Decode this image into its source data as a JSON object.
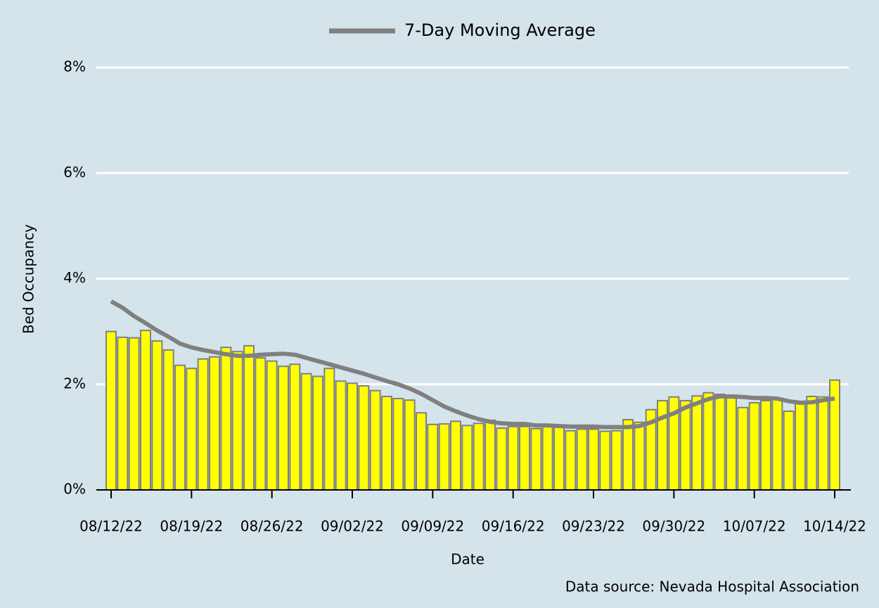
{
  "chart_data": {
    "type": "bar",
    "xlabel": "Date",
    "ylabel": "Bed Occupancy",
    "source": "Data source: Nevada Hospital Association",
    "categories": [
      "08/12/22",
      null,
      null,
      null,
      null,
      null,
      null,
      "08/19/22",
      null,
      null,
      null,
      null,
      null,
      null,
      "08/26/22",
      null,
      null,
      null,
      null,
      null,
      null,
      "09/02/22",
      null,
      null,
      null,
      null,
      null,
      null,
      "09/09/22",
      null,
      null,
      null,
      null,
      null,
      null,
      "09/16/22",
      null,
      null,
      null,
      null,
      null,
      null,
      "09/23/22",
      null,
      null,
      null,
      null,
      null,
      null,
      "09/30/22",
      null,
      null,
      null,
      null,
      null,
      null,
      "10/07/22",
      null,
      null,
      null,
      null,
      null,
      null,
      "10/14/22"
    ],
    "series": [
      {
        "type": "bar",
        "color": "#ffff00",
        "values": [
          3.0,
          2.89,
          2.88,
          3.02,
          2.82,
          2.65,
          2.36,
          2.3,
          2.48,
          2.52,
          2.7,
          2.62,
          2.73,
          2.5,
          2.44,
          2.34,
          2.38,
          2.2,
          2.15,
          2.3,
          2.06,
          2.02,
          1.97,
          1.88,
          1.77,
          1.73,
          1.7,
          1.46,
          1.24,
          1.25,
          1.3,
          1.22,
          1.26,
          1.32,
          1.17,
          1.2,
          1.2,
          1.16,
          1.21,
          1.19,
          1.12,
          1.15,
          1.15,
          1.11,
          1.12,
          1.33,
          1.28,
          1.52,
          1.69,
          1.76,
          1.69,
          1.78,
          1.84,
          1.81,
          1.74,
          1.56,
          1.65,
          1.69,
          1.72,
          1.49,
          1.64,
          1.77,
          1.76,
          2.08
        ]
      },
      {
        "type": "line",
        "name": "7-Day Moving Average",
        "color": "#808080",
        "values": [
          3.57,
          3.45,
          3.29,
          3.16,
          3.02,
          2.9,
          2.77,
          2.7,
          2.65,
          2.61,
          2.57,
          2.54,
          2.54,
          2.56,
          2.57,
          2.58,
          2.56,
          2.5,
          2.44,
          2.38,
          2.32,
          2.26,
          2.2,
          2.13,
          2.06,
          2.0,
          1.92,
          1.82,
          1.7,
          1.58,
          1.49,
          1.41,
          1.34,
          1.29,
          1.26,
          1.25,
          1.25,
          1.22,
          1.22,
          1.21,
          1.2,
          1.2,
          1.2,
          1.19,
          1.19,
          1.19,
          1.21,
          1.28,
          1.37,
          1.45,
          1.56,
          1.64,
          1.72,
          1.77,
          1.77,
          1.76,
          1.74,
          1.74,
          1.73,
          1.68,
          1.65,
          1.66,
          1.7,
          1.73
        ]
      }
    ],
    "ylim": [
      0,
      8
    ],
    "yticks": [
      {
        "value": 0,
        "label": "0%"
      },
      {
        "value": 2,
        "label": "2%"
      },
      {
        "value": 4,
        "label": "4%"
      },
      {
        "value": 6,
        "label": "6%"
      },
      {
        "value": 8,
        "label": "8%"
      }
    ],
    "grid": true,
    "legend": "top"
  }
}
